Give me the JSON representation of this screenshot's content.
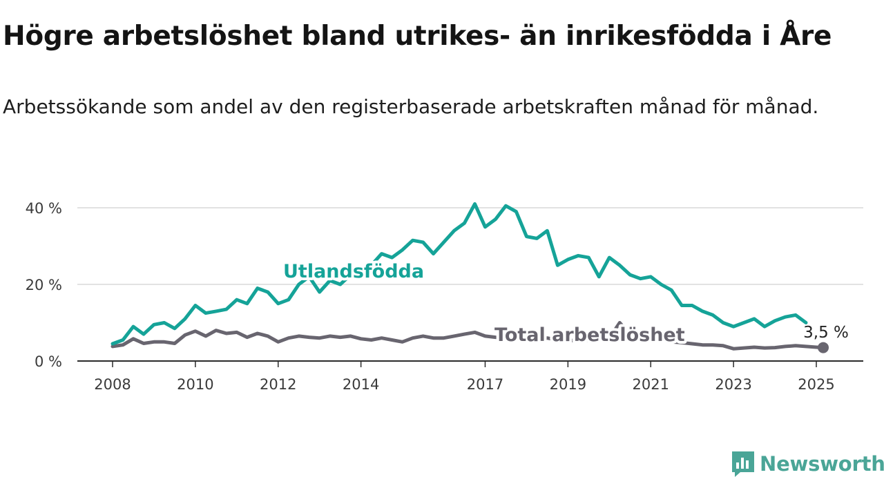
{
  "header": {
    "title": "Högre arbetslöshet bland utrikes- än inrikesfödda i Åre",
    "subtitle": "Arbetssökande som andel av den registerbaserade arbetskraften månad för månad."
  },
  "brand": {
    "name": "Newsworthy",
    "icon": "bar-chart-speech-bubble-icon",
    "color": "#4aa597"
  },
  "chart_data": {
    "type": "line",
    "title": "Högre arbetslöshet bland utrikes- än inrikesfödda i Åre",
    "subtitle": "Arbetssökande som andel av den registerbaserade arbetskraften månad för månad.",
    "xlabel": "",
    "ylabel": "",
    "x_ticks": [
      "2008",
      "2010",
      "2012",
      "2014",
      "2017",
      "2019",
      "2021",
      "2023",
      "2025"
    ],
    "y_ticks": [
      "0 %",
      "20 %",
      "40 %"
    ],
    "ylim": [
      0,
      40
    ],
    "grid": true,
    "end_label": "3,5 %",
    "series": [
      {
        "name": "Utlandsfödda",
        "color": "#15a398",
        "points": [
          [
            "2008-01",
            4.5
          ],
          [
            "2008-04",
            5.5
          ],
          [
            "2008-07",
            9
          ],
          [
            "2008-10",
            7
          ],
          [
            "2009-01",
            9.5
          ],
          [
            "2009-04",
            10
          ],
          [
            "2009-07",
            8.5
          ],
          [
            "2009-10",
            11
          ],
          [
            "2010-01",
            14.5
          ],
          [
            "2010-04",
            12.5
          ],
          [
            "2010-07",
            13
          ],
          [
            "2010-10",
            13.5
          ],
          [
            "2011-01",
            16
          ],
          [
            "2011-04",
            15
          ],
          [
            "2011-07",
            19
          ],
          [
            "2011-10",
            18
          ],
          [
            "2012-01",
            15
          ],
          [
            "2012-04",
            16
          ],
          [
            "2012-07",
            20
          ],
          [
            "2012-10",
            22
          ],
          [
            "2013-01",
            18
          ],
          [
            "2013-04",
            21
          ],
          [
            "2013-07",
            20
          ],
          [
            "2013-10",
            22.5
          ],
          [
            "2014-01",
            24
          ],
          [
            "2014-04",
            25
          ],
          [
            "2014-07",
            28
          ],
          [
            "2014-10",
            27
          ],
          [
            "2015-01",
            29
          ],
          [
            "2015-04",
            31.5
          ],
          [
            "2015-07",
            31
          ],
          [
            "2015-10",
            28
          ],
          [
            "2016-01",
            31
          ],
          [
            "2016-04",
            34
          ],
          [
            "2016-07",
            36
          ],
          [
            "2016-10",
            41
          ],
          [
            "2017-01",
            35
          ],
          [
            "2017-04",
            37
          ],
          [
            "2017-07",
            40.5
          ],
          [
            "2017-10",
            39
          ],
          [
            "2018-01",
            32.5
          ],
          [
            "2018-04",
            32
          ],
          [
            "2018-07",
            34
          ],
          [
            "2018-10",
            25
          ],
          [
            "2019-01",
            26.5
          ],
          [
            "2019-04",
            27.5
          ],
          [
            "2019-07",
            27
          ],
          [
            "2019-10",
            22
          ],
          [
            "2020-01",
            27
          ],
          [
            "2020-04",
            25
          ],
          [
            "2020-07",
            22.5
          ],
          [
            "2020-10",
            21.5
          ],
          [
            "2021-01",
            22
          ],
          [
            "2021-04",
            20
          ],
          [
            "2021-07",
            18.5
          ],
          [
            "2021-10",
            14.5
          ],
          [
            "2022-01",
            14.5
          ],
          [
            "2022-04",
            13
          ],
          [
            "2022-07",
            12
          ],
          [
            "2022-10",
            10
          ],
          [
            "2023-01",
            9
          ],
          [
            "2023-04",
            10
          ],
          [
            "2023-07",
            11
          ],
          [
            "2023-10",
            9
          ],
          [
            "2024-01",
            10.5
          ],
          [
            "2024-04",
            11.5
          ],
          [
            "2024-07",
            12
          ],
          [
            "2024-10",
            10
          ]
        ]
      },
      {
        "name": "Total arbetslöshet",
        "color": "#68656f",
        "points": [
          [
            "2008-01",
            3.8
          ],
          [
            "2008-04",
            4.2
          ],
          [
            "2008-07",
            5.8
          ],
          [
            "2008-10",
            4.6
          ],
          [
            "2009-01",
            5
          ],
          [
            "2009-04",
            5
          ],
          [
            "2009-07",
            4.6
          ],
          [
            "2009-10",
            6.8
          ],
          [
            "2010-01",
            7.8
          ],
          [
            "2010-04",
            6.5
          ],
          [
            "2010-07",
            8
          ],
          [
            "2010-10",
            7.2
          ],
          [
            "2011-01",
            7.5
          ],
          [
            "2011-04",
            6.2
          ],
          [
            "2011-07",
            7.2
          ],
          [
            "2011-10",
            6.5
          ],
          [
            "2012-01",
            5
          ],
          [
            "2012-04",
            6
          ],
          [
            "2012-07",
            6.5
          ],
          [
            "2012-10",
            6.2
          ],
          [
            "2013-01",
            6
          ],
          [
            "2013-04",
            6.5
          ],
          [
            "2013-07",
            6.2
          ],
          [
            "2013-10",
            6.5
          ],
          [
            "2014-01",
            5.8
          ],
          [
            "2014-04",
            5.5
          ],
          [
            "2014-07",
            6
          ],
          [
            "2014-10",
            5.5
          ],
          [
            "2015-01",
            5
          ],
          [
            "2015-04",
            6
          ],
          [
            "2015-07",
            6.5
          ],
          [
            "2015-10",
            6
          ],
          [
            "2016-01",
            6
          ],
          [
            "2016-04",
            6.5
          ],
          [
            "2016-07",
            7
          ],
          [
            "2016-10",
            7.5
          ],
          [
            "2017-01",
            6.5
          ],
          [
            "2017-04",
            6.2
          ],
          [
            "2017-07",
            6
          ],
          [
            "2017-10",
            6
          ],
          [
            "2018-01",
            5.5
          ],
          [
            "2018-04",
            5.5
          ],
          [
            "2018-07",
            6
          ],
          [
            "2018-10",
            5.5
          ],
          [
            "2019-01",
            5.5
          ],
          [
            "2019-04",
            5.2
          ],
          [
            "2019-07",
            5.5
          ],
          [
            "2019-10",
            5.5
          ],
          [
            "2020-01",
            6
          ],
          [
            "2020-04",
            10
          ],
          [
            "2020-07",
            7
          ],
          [
            "2020-10",
            6
          ],
          [
            "2021-01",
            6.2
          ],
          [
            "2021-04",
            5.5
          ],
          [
            "2021-07",
            5
          ],
          [
            "2021-10",
            4.8
          ],
          [
            "2022-01",
            4.5
          ],
          [
            "2022-04",
            4.2
          ],
          [
            "2022-07",
            4.2
          ],
          [
            "2022-10",
            4
          ],
          [
            "2023-01",
            3.2
          ],
          [
            "2023-04",
            3.4
          ],
          [
            "2023-07",
            3.6
          ],
          [
            "2023-10",
            3.4
          ],
          [
            "2024-01",
            3.5
          ],
          [
            "2024-04",
            3.8
          ],
          [
            "2024-07",
            4
          ],
          [
            "2024-10",
            3.8
          ],
          [
            "2025-01",
            3.6
          ],
          [
            "2025-03",
            3.5
          ]
        ]
      }
    ]
  }
}
